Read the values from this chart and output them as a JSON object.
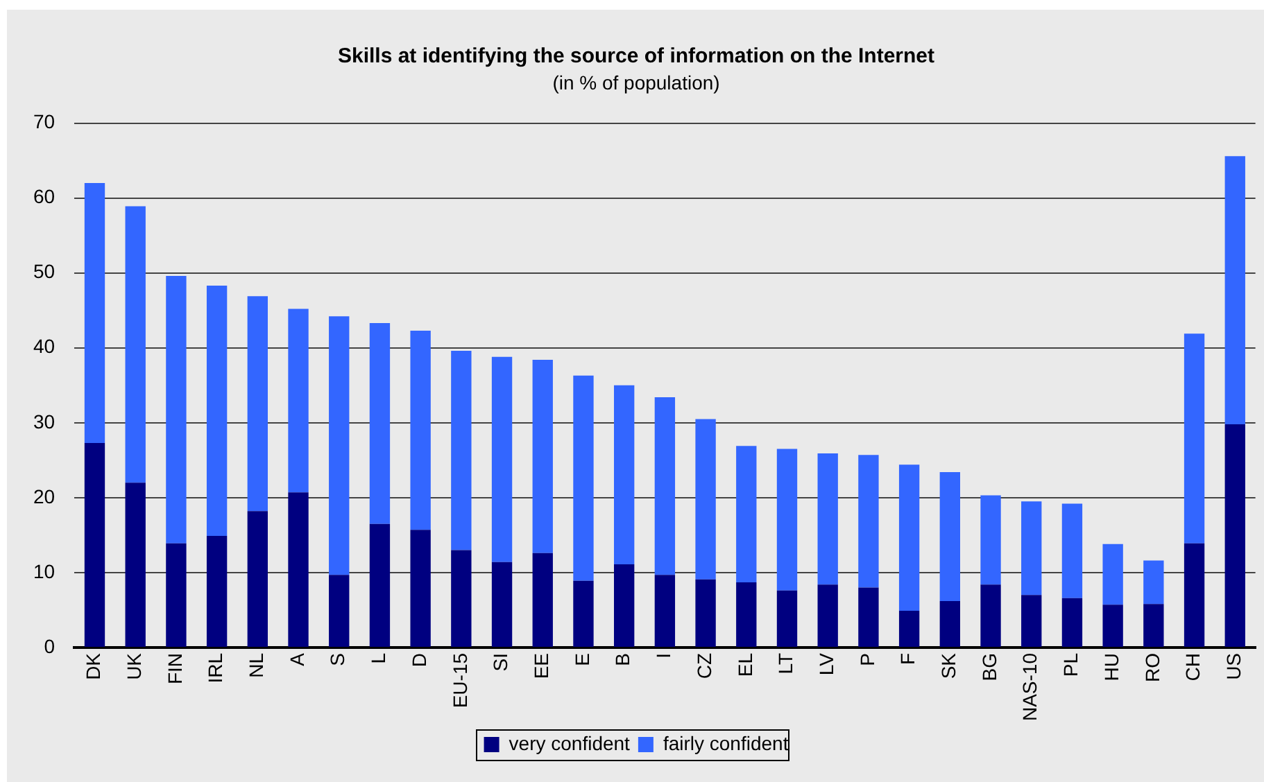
{
  "chart_data": {
    "type": "bar",
    "title": "Skills at identifying the source of information on the Internet",
    "subtitle": "(in % of population)",
    "categories": [
      "DK",
      "UK",
      "FIN",
      "IRL",
      "NL",
      "A",
      "S",
      "L",
      "D",
      "EU-15",
      "SI",
      "EE",
      "E",
      "B",
      "I",
      "CZ",
      "EL",
      "LT",
      "LV",
      "P",
      "F",
      "SK",
      "BG",
      "NAS-10",
      "PL",
      "HU",
      "RO",
      "CH",
      "US"
    ],
    "series": [
      {
        "name": "very confident",
        "color": "#000080",
        "values": [
          27.3,
          22.0,
          13.9,
          14.9,
          18.2,
          20.7,
          9.7,
          16.5,
          15.7,
          13.0,
          11.4,
          12.6,
          8.9,
          11.1,
          9.7,
          9.1,
          8.7,
          7.6,
          8.4,
          8.0,
          4.9,
          6.2,
          8.4,
          7.0,
          6.6,
          5.7,
          5.8,
          13.9,
          29.8
        ]
      },
      {
        "name": "fairly confident",
        "color": "#3366ff",
        "values": [
          34.7,
          36.9,
          35.7,
          33.4,
          28.7,
          24.5,
          34.5,
          26.8,
          26.6,
          26.6,
          27.4,
          25.8,
          27.4,
          23.9,
          23.7,
          21.4,
          18.2,
          18.9,
          17.5,
          17.7,
          19.5,
          17.2,
          11.9,
          12.5,
          12.6,
          8.1,
          5.8,
          28.0,
          35.8
        ]
      }
    ],
    "stacked": true,
    "ylim": [
      0,
      70
    ],
    "yticks": [
      0,
      10,
      20,
      30,
      40,
      50,
      60,
      70
    ],
    "grid": "y",
    "legend": "bottom"
  }
}
